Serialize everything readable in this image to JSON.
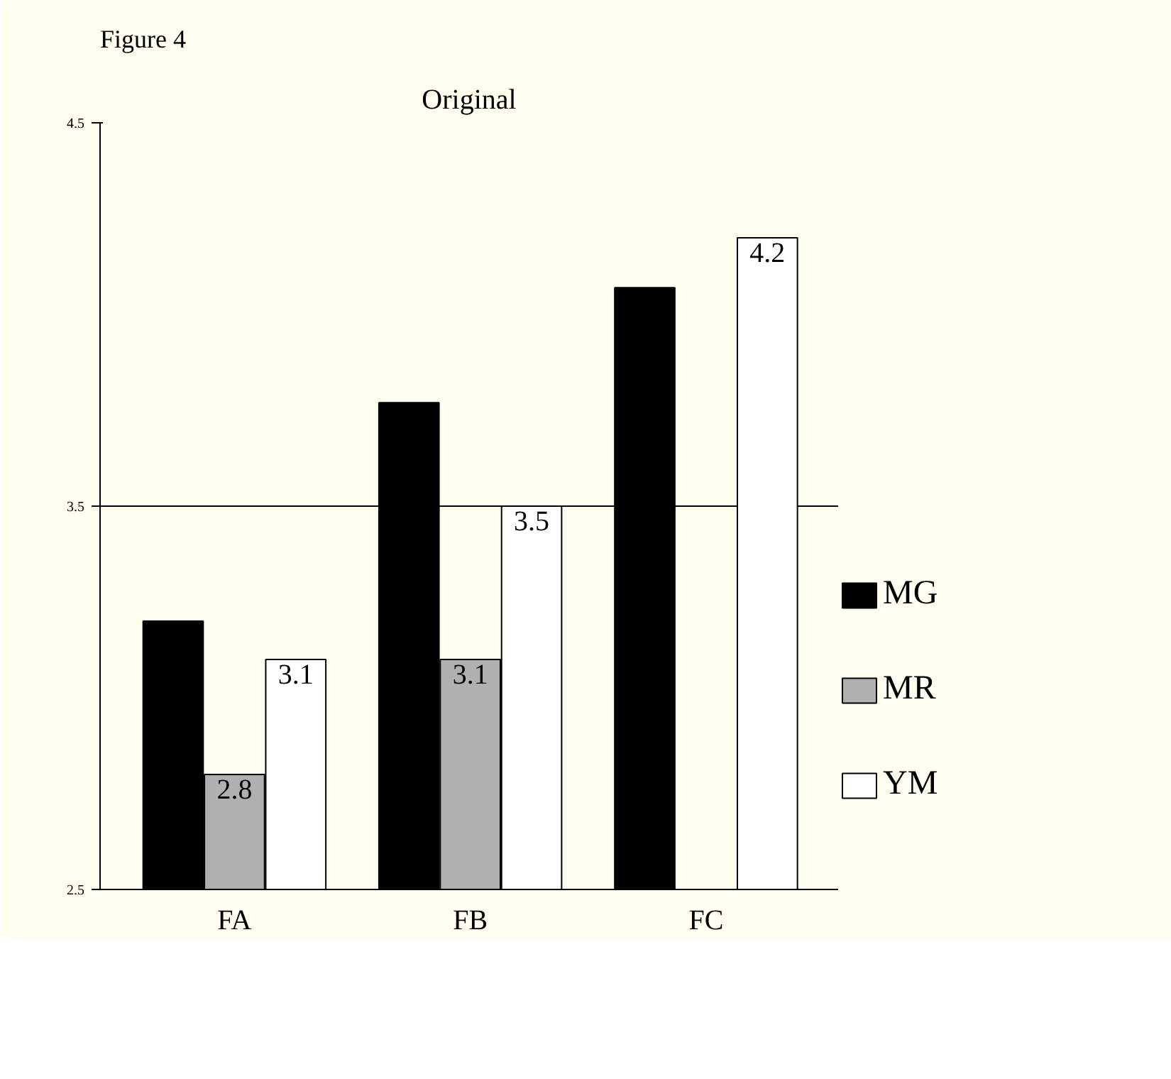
{
  "chart_data": {
    "type": "bar",
    "title": "Original",
    "annotations": [
      "Figure 4"
    ],
    "categories": [
      "FA",
      "FB",
      "FC"
    ],
    "series": [
      {
        "name": "MG",
        "color": "#000000",
        "values": [
          3.2,
          3.77,
          4.07
        ],
        "value_labels": [
          null,
          null,
          null
        ]
      },
      {
        "name": "MR",
        "color": "#b0b0b0",
        "values": [
          2.8,
          3.1,
          null
        ],
        "value_labels": [
          "2.8",
          "3.1",
          null
        ]
      },
      {
        "name": "YM",
        "color": "#ffffff",
        "values": [
          3.1,
          3.5,
          4.2
        ],
        "value_labels": [
          "3.1",
          "3.5",
          "4.2"
        ]
      }
    ],
    "ylim": [
      2.5,
      4.5
    ],
    "yticks": [
      2.5,
      3.5,
      4.5
    ],
    "grid": "y",
    "legend": "right"
  }
}
